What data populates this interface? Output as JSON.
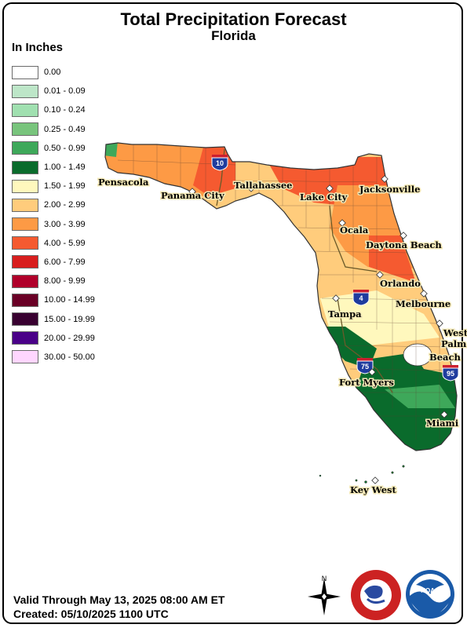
{
  "title": "Total Precipitation Forecast",
  "subtitle": "Florida",
  "legend": {
    "title": "In Inches",
    "items": [
      {
        "label": "0.00",
        "color": "#ffffff"
      },
      {
        "label": "0.01 - 0.09",
        "color": "#bde6c8"
      },
      {
        "label": "0.10 - 0.24",
        "color": "#a0e0b0"
      },
      {
        "label": "0.25 - 0.49",
        "color": "#78c47c"
      },
      {
        "label": "0.50 - 0.99",
        "color": "#3ea85a"
      },
      {
        "label": "1.00 - 1.49",
        "color": "#0a6b2c"
      },
      {
        "label": "1.50 - 1.99",
        "color": "#fff8bd"
      },
      {
        "label": "2.00 - 2.99",
        "color": "#ffcc7c"
      },
      {
        "label": "3.00 - 3.99",
        "color": "#fd9a45"
      },
      {
        "label": "4.00 - 5.99",
        "color": "#f55a30"
      },
      {
        "label": "6.00 - 7.99",
        "color": "#d81e1e"
      },
      {
        "label": "8.00 - 9.99",
        "color": "#b0002a"
      },
      {
        "label": "10.00 - 14.99",
        "color": "#6a0026"
      },
      {
        "label": "15.00 - 19.99",
        "color": "#380030"
      },
      {
        "label": "20.00 - 29.99",
        "color": "#4a0088"
      },
      {
        "label": "30.00 - 50.00",
        "color": "#ffd6ff"
      }
    ]
  },
  "cities": [
    "Pensacola",
    "Panama City",
    "Tallahassee",
    "Lake City",
    "Jacksonville",
    "Ocala",
    "Daytona Beach",
    "Orlando",
    "Melbourne",
    "Tampa",
    "West",
    "Palm",
    "Beach",
    "Fort Myers",
    "Miami",
    "Key West"
  ],
  "highways": [
    "10",
    "4",
    "75",
    "95"
  ],
  "footer": {
    "valid": "Valid Through May 13, 2025 08:00 AM ET",
    "created": "Created: 05/10/2025 1100 UTC"
  },
  "compass_label": "N",
  "logos": {
    "nws": "NATIONAL WEATHER SERVICE",
    "noaa": "NOAA"
  }
}
